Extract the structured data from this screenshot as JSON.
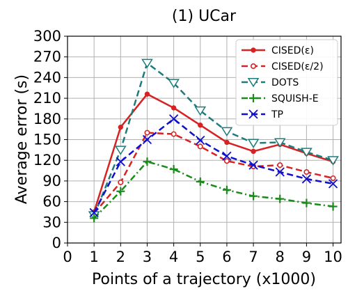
{
  "chart_data": {
    "type": "line",
    "title": "(1) UCar",
    "xlabel": "Points of a trajectory (x1000)",
    "ylabel": "Average error (s)",
    "x": [
      1,
      2,
      3,
      4,
      5,
      6,
      7,
      8,
      9,
      10
    ],
    "xlim": [
      0,
      10.3
    ],
    "ylim": [
      0,
      300
    ],
    "xticks": [
      0,
      1,
      2,
      3,
      4,
      5,
      6,
      7,
      8,
      9,
      10
    ],
    "yticks": [
      0,
      30,
      60,
      90,
      120,
      150,
      180,
      210,
      240,
      270,
      300
    ],
    "grid": true,
    "legend_position": "top-right",
    "series": [
      {
        "name": "CISED(ε)",
        "color": "#d62222",
        "line_style": "solid",
        "marker": "filled-circle",
        "values": [
          45,
          168,
          216,
          196,
          171,
          146,
          133,
          143,
          130,
          118
        ]
      },
      {
        "name": "CISED(ε/2)",
        "color": "#d62222",
        "line_style": "dashed",
        "marker": "open-circle",
        "values": [
          43,
          88,
          160,
          158,
          140,
          119,
          111,
          113,
          103,
          94
        ]
      },
      {
        "name": "DOTS",
        "color": "#1e7b7b",
        "line_style": "dashed",
        "marker": "open-triangle-down",
        "values": [
          40,
          135,
          261,
          232,
          192,
          162,
          145,
          146,
          132,
          120
        ]
      },
      {
        "name": "SQUISH-E",
        "color": "#1a8a1a",
        "line_style": "dash-dot",
        "marker": "plus",
        "values": [
          36,
          75,
          118,
          107,
          89,
          77,
          68,
          64,
          58,
          53
        ]
      },
      {
        "name": "TP",
        "color": "#1010cc",
        "line_style": "dashed",
        "marker": "x",
        "values": [
          44,
          118,
          150,
          180,
          149,
          126,
          113,
          103,
          93,
          86
        ]
      }
    ]
  }
}
